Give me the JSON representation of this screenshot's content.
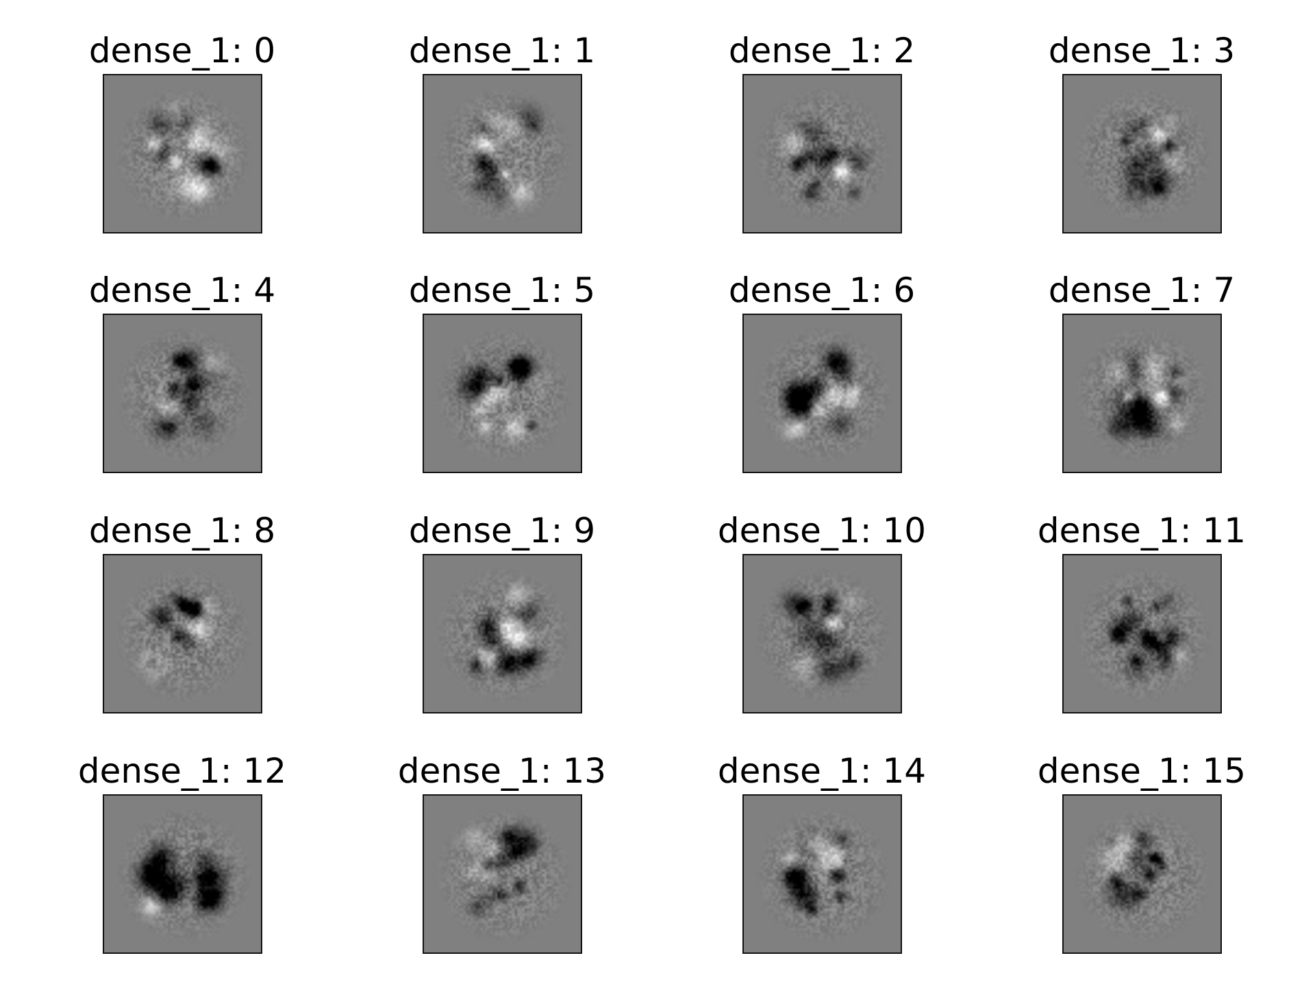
{
  "chart_data": {
    "type": "heatmap",
    "layer": "dense_1",
    "grid": {
      "rows": 4,
      "cols": 4
    },
    "colormap": "gray",
    "background_color": "#808080",
    "axes": "off",
    "panels": [
      {
        "index": 0,
        "title": "dense_1: 0"
      },
      {
        "index": 1,
        "title": "dense_1: 1"
      },
      {
        "index": 2,
        "title": "dense_1: 2"
      },
      {
        "index": 3,
        "title": "dense_1: 3"
      },
      {
        "index": 4,
        "title": "dense_1: 4"
      },
      {
        "index": 5,
        "title": "dense_1: 5"
      },
      {
        "index": 6,
        "title": "dense_1: 6"
      },
      {
        "index": 7,
        "title": "dense_1: 7"
      },
      {
        "index": 8,
        "title": "dense_1: 8"
      },
      {
        "index": 9,
        "title": "dense_1: 9"
      },
      {
        "index": 10,
        "title": "dense_1: 10"
      },
      {
        "index": 11,
        "title": "dense_1: 11"
      },
      {
        "index": 12,
        "title": "dense_1: 12"
      },
      {
        "index": 13,
        "title": "dense_1: 13"
      },
      {
        "index": 14,
        "title": "dense_1: 14"
      },
      {
        "index": 15,
        "title": "dense_1: 15"
      }
    ]
  }
}
